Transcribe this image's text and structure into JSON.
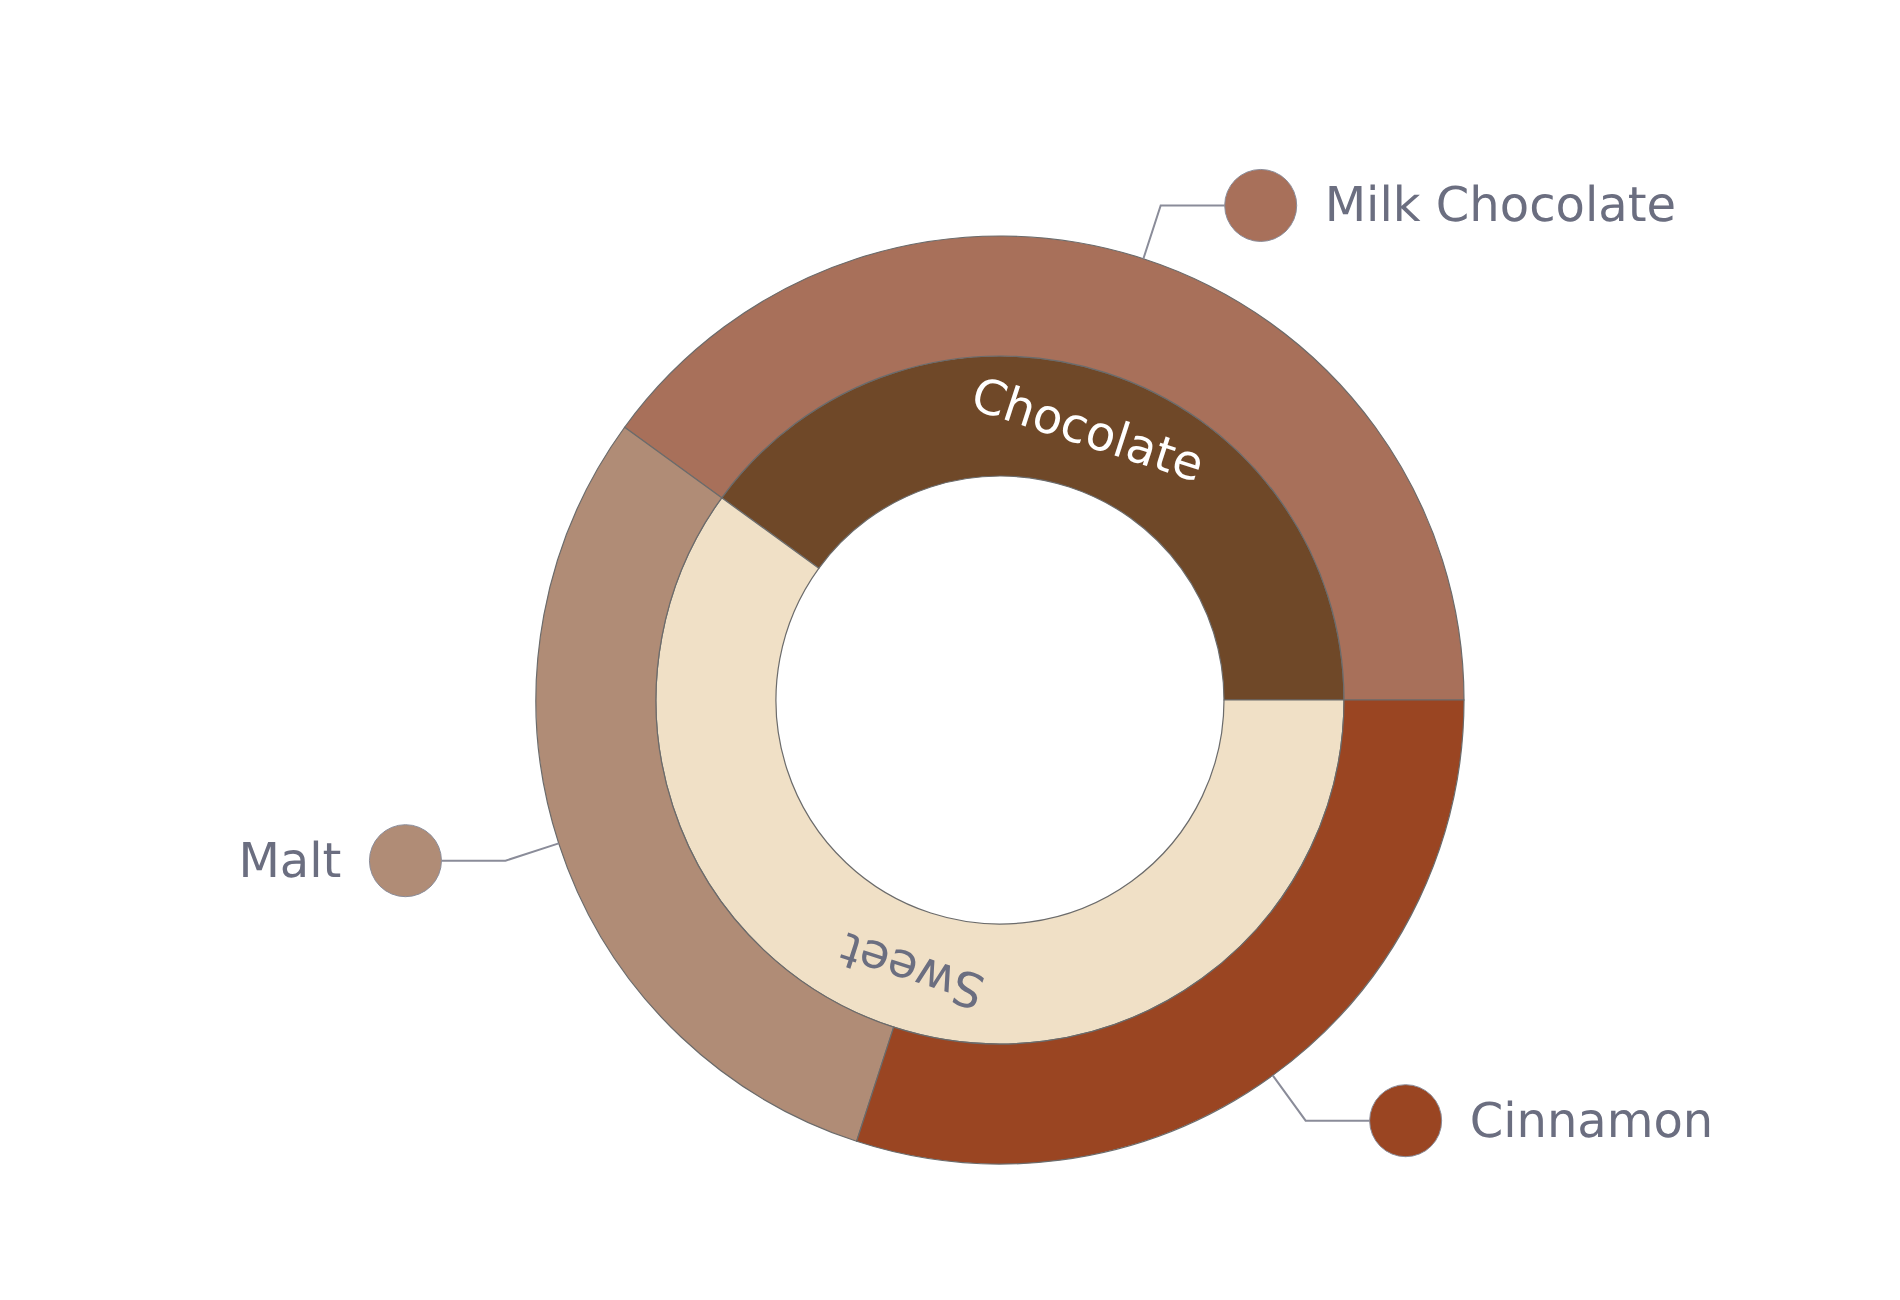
{
  "chart_data": [
    {
      "type": "donut",
      "categories": [
        "Chocolate",
        "Sweet"
      ],
      "values": [
        40,
        60
      ],
      "colors": [
        "#6f4828",
        "#f0e0c6"
      ]
    },
    {
      "type": "donut",
      "categories": [
        "Milk Chocolate",
        "Malt",
        "Cinnamon"
      ],
      "values": [
        40,
        30,
        30
      ],
      "colors": [
        "#a8705a",
        "#b08c76",
        "#9a4522"
      ],
      "legend": "right"
    }
  ]
}
